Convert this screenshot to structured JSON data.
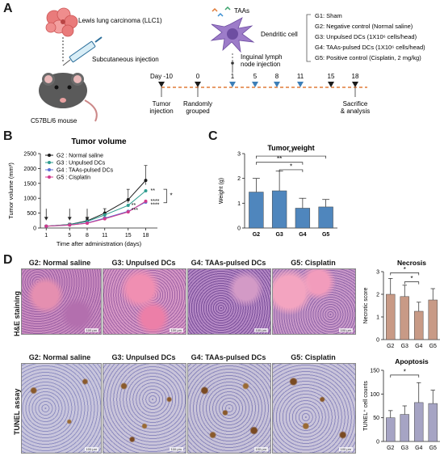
{
  "panels": {
    "a": "A",
    "b": "B",
    "c": "C",
    "d": "D"
  },
  "panelA": {
    "tumor_label": "Lewis lung carcinoma (LLC1)",
    "injection_label": "Subcutaneous injection",
    "mouse_label": "C57BL/6 mouse",
    "taas_label": "TAAs",
    "dc_label": "Dendritic cell",
    "inguinal_label1": "Inguinal lymph",
    "inguinal_label2": "node injection",
    "timeline_days": [
      "Day -10",
      "0",
      "1",
      "5",
      "8",
      "11",
      "15",
      "18"
    ],
    "event_tumor": [
      "Tumor",
      "injection"
    ],
    "event_random": [
      "Randomly",
      "grouped"
    ],
    "event_sacrifice": [
      "Sacrifice",
      "& analysis"
    ],
    "groups": [
      "G1: Sham",
      "G2: Negative control (Normal saline)",
      "G3: Unpulsed DCs (1X10⁶ cells/head)",
      "G4: TAAs-pulsed DCs (1X10⁶ cells/head)",
      "G5: Positive control (Cisplatin, 2 mg/kg)"
    ],
    "colors": {
      "black_marker": "#1a1a1a",
      "blue_marker": "#3d7fb8"
    }
  },
  "chart_data": [
    {
      "type": "line",
      "title": "Tumor volume",
      "xlabel": "Time after administration (days)",
      "ylabel": "Tumor volume (mm³)",
      "x": [
        1,
        5,
        8,
        11,
        15,
        18
      ],
      "ylim": [
        0,
        2500
      ],
      "yticks": [
        0,
        500,
        1000,
        1500,
        2000,
        2500
      ],
      "series": [
        {
          "name": "G2 : Normal saline",
          "color": "#1a1a1a",
          "values": [
            60,
            120,
            240,
            500,
            950,
            1600
          ]
        },
        {
          "name": "G3 : Unpulsed DCs",
          "color": "#2e9c8f",
          "values": [
            60,
            115,
            220,
            440,
            760,
            1250
          ]
        },
        {
          "name": "G4 : TAAs-pulsed DCs",
          "color": "#5b6fd6",
          "values": [
            60,
            100,
            170,
            330,
            560,
            870
          ]
        },
        {
          "name": "G5 : Cisplatin",
          "color": "#d13a8c",
          "values": [
            60,
            100,
            160,
            310,
            540,
            900
          ]
        }
      ],
      "annotations": {
        "star_single": "*",
        "stars_2": "**",
        "stars_3": "***",
        "stars_4": "****"
      }
    },
    {
      "type": "bar",
      "title": "Tumor weight",
      "ylabel": "Weight (g)",
      "categories": [
        "G2",
        "G3",
        "G4",
        "G5"
      ],
      "values": [
        1.45,
        1.5,
        0.8,
        0.85
      ],
      "errors": [
        0.55,
        0.8,
        0.4,
        0.3
      ],
      "ylim": [
        0,
        3
      ],
      "yticks": [
        0,
        1,
        2,
        3
      ],
      "bar_color": "#4f86bd",
      "annotations": {
        "stars_2": "**",
        "star_single": "*"
      }
    },
    {
      "type": "bar",
      "title": "Necrosis",
      "ylabel": "Necrotic score",
      "categories": [
        "G2",
        "G3",
        "G4",
        "G5"
      ],
      "values": [
        2.0,
        1.9,
        1.25,
        1.75
      ],
      "errors": [
        0.7,
        0.5,
        0.4,
        0.5
      ],
      "ylim": [
        0,
        3
      ],
      "yticks": [
        0,
        1,
        2,
        3
      ],
      "bar_color": "#c89a86",
      "annotations": {
        "star_single": "*"
      }
    },
    {
      "type": "bar",
      "title": "Apoptosis",
      "ylabel": "TUNEL⁺ cell counts",
      "categories": [
        "G2",
        "G3",
        "G4",
        "G5"
      ],
      "values": [
        50,
        57,
        82,
        80
      ],
      "errors": [
        15,
        18,
        42,
        28
      ],
      "ylim": [
        0,
        150
      ],
      "yticks": [
        0,
        50,
        100,
        150
      ],
      "bar_color": "#a6a4c4",
      "annotations": {
        "star_single": "*"
      }
    }
  ],
  "panelD": {
    "titles": [
      "G2: Normal saline",
      "G3: Unpulsed DCs",
      "G4: TAAs-pulsed DCs",
      "G5: Cisplatin"
    ],
    "row_he": "H&E staining",
    "row_tunel": "TUNEL assay",
    "scale": "100 μm"
  }
}
